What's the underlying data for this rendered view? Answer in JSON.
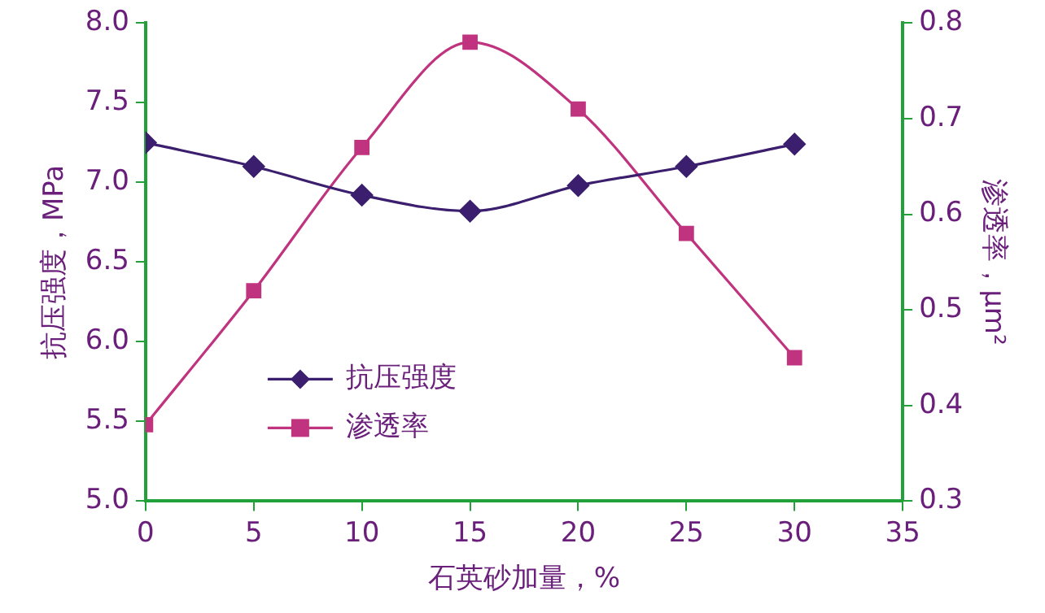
{
  "chart_data": {
    "type": "line",
    "xlabel": "石英砂加量，%",
    "ylabel": "抗压强度，MPa",
    "y2label": "渗透率，μm²",
    "x": [
      0,
      5,
      10,
      15,
      20,
      25,
      30
    ],
    "series": [
      {
        "name": "抗压强度",
        "color": "#3b1f6e",
        "marker": "diamond",
        "values": [
          7.25,
          7.1,
          6.92,
          6.82,
          6.98,
          7.1,
          7.24
        ]
      },
      {
        "name": "渗透率",
        "color": "#c0337f",
        "marker": "square",
        "axis": "y2",
        "values": [
          0.38,
          0.52,
          0.67,
          0.78,
          0.71,
          0.58,
          0.45
        ]
      }
    ],
    "xlim": [
      0,
      35
    ],
    "xticks": [
      0,
      5,
      10,
      15,
      20,
      25,
      30,
      35
    ],
    "ylim": [
      5,
      8
    ],
    "yticks": [
      {
        "value": 5,
        "label": "5.0"
      },
      7.5,
      {
        "value": 7,
        "label": "7.0"
      },
      6.5,
      {
        "value": 6,
        "label": "6.0"
      },
      5.5,
      {
        "value": 8,
        "label": "8.0"
      }
    ],
    "y2lim": [
      0.3,
      0.8
    ],
    "y2ticks": [
      0.3,
      0.4,
      0.5,
      0.6,
      0.7,
      0.8
    ],
    "grid": false,
    "legend": "bottom left"
  }
}
